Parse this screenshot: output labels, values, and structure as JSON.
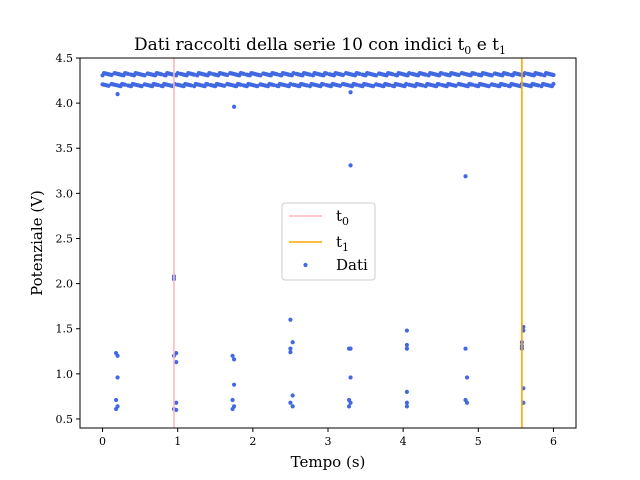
{
  "chart_data": {
    "type": "scatter",
    "title": "Dati raccolti della serie 10 con indici t",
    "title_sub_0": "0",
    "title_mid": " e t",
    "title_sub_1": "1",
    "xlabel": "Tempo (s)",
    "ylabel": "Potenziale (V)",
    "xlim": [
      -0.3,
      6.3
    ],
    "ylim": [
      0.4,
      4.5
    ],
    "xticks": [
      "0",
      "1",
      "2",
      "3",
      "4",
      "5",
      "6"
    ],
    "yticks": [
      "0.5",
      "1.0",
      "1.5",
      "2.0",
      "2.5",
      "3.0",
      "3.5",
      "4.0",
      "4.5"
    ],
    "grid": false,
    "legend_placement": "center",
    "colors": {
      "t0": "#ffb6c1",
      "t1": "#ffa500",
      "data": "#4169e1"
    },
    "vlines": [
      {
        "name": "t",
        "sub": "0",
        "x": 0.95,
        "color": "#ffb6c1"
      },
      {
        "name": "t",
        "sub": "1",
        "x": 5.58,
        "color": "#ffa500"
      }
    ],
    "series": [
      {
        "name": "Dati",
        "high_levels": [
          4.32,
          4.2
        ],
        "high_range": [
          0.0,
          6.0
        ],
        "points": [
          [
            0.2,
            4.1
          ],
          [
            1.75,
            3.96
          ],
          [
            3.3,
            4.12
          ],
          [
            3.3,
            3.31
          ],
          [
            4.83,
            3.19
          ],
          [
            0.95,
            2.08
          ],
          [
            0.95,
            2.05
          ],
          [
            0.18,
            1.23
          ],
          [
            0.2,
            1.2
          ],
          [
            0.2,
            0.96
          ],
          [
            0.18,
            0.71
          ],
          [
            0.2,
            0.64
          ],
          [
            0.18,
            0.61
          ],
          [
            0.98,
            1.23
          ],
          [
            0.95,
            1.2
          ],
          [
            0.98,
            1.13
          ],
          [
            0.98,
            0.68
          ],
          [
            0.95,
            0.61
          ],
          [
            0.98,
            0.6
          ],
          [
            1.73,
            1.2
          ],
          [
            1.75,
            1.16
          ],
          [
            1.75,
            0.88
          ],
          [
            1.73,
            0.71
          ],
          [
            1.75,
            0.64
          ],
          [
            1.73,
            0.61
          ],
          [
            2.5,
            1.6
          ],
          [
            2.53,
            1.35
          ],
          [
            2.5,
            1.28
          ],
          [
            2.5,
            1.24
          ],
          [
            2.53,
            0.76
          ],
          [
            2.5,
            0.68
          ],
          [
            2.53,
            0.64
          ],
          [
            3.28,
            1.28
          ],
          [
            3.3,
            1.28
          ],
          [
            3.3,
            0.96
          ],
          [
            3.28,
            0.71
          ],
          [
            3.3,
            0.68
          ],
          [
            3.28,
            0.64
          ],
          [
            4.05,
            1.48
          ],
          [
            4.05,
            1.32
          ],
          [
            4.05,
            1.28
          ],
          [
            4.05,
            0.8
          ],
          [
            4.05,
            0.68
          ],
          [
            4.05,
            0.64
          ],
          [
            4.83,
            1.28
          ],
          [
            4.85,
            0.96
          ],
          [
            4.83,
            0.71
          ],
          [
            4.85,
            0.68
          ],
          [
            5.58,
            1.35
          ],
          [
            5.58,
            1.31
          ],
          [
            5.58,
            1.28
          ],
          [
            5.6,
            1.52
          ],
          [
            5.6,
            1.48
          ],
          [
            5.6,
            0.84
          ],
          [
            5.6,
            0.68
          ]
        ]
      }
    ],
    "legend": [
      {
        "label": "t",
        "sub": "0",
        "kind": "line",
        "color": "#ffb6c1"
      },
      {
        "label": "t",
        "sub": "1",
        "kind": "line",
        "color": "#ffa500"
      },
      {
        "label": "Dati",
        "kind": "marker",
        "color": "#4169e1"
      }
    ]
  }
}
